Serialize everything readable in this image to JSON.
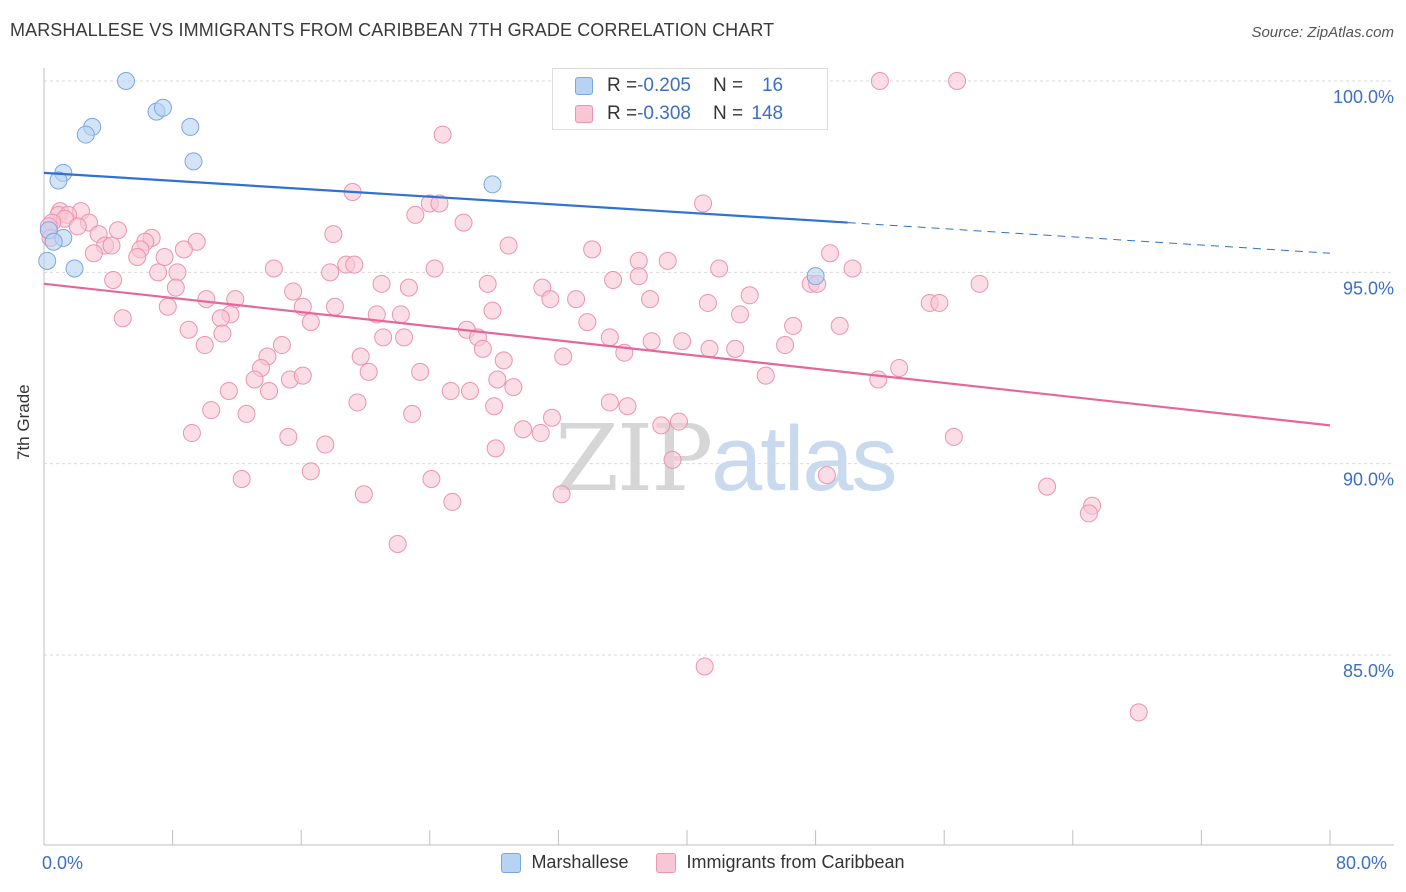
{
  "title": "MARSHALLESE VS IMMIGRANTS FROM CARIBBEAN 7TH GRADE CORRELATION CHART",
  "source": "Source: ZipAtlas.com",
  "watermark": {
    "zip": "ZIP",
    "atlas": "atlas"
  },
  "colors": {
    "blue_fill": "#b8d2f2",
    "blue_stroke": "#7aa7e0",
    "blue_line": "#2e72d2",
    "pink_fill": "#f9c6d6",
    "pink_stroke": "#ec93b0",
    "pink_line": "#e5679a",
    "tick_text": "#3b6fc6",
    "grid": "#d9d9d9"
  },
  "stats": [
    {
      "r_label": "R = ",
      "r_value": "-0.205",
      "n_label": "N = ",
      "n_value": "16"
    },
    {
      "r_label": "R = ",
      "r_value": "-0.308",
      "n_label": "N = ",
      "n_value": "148"
    }
  ],
  "legend": [
    "Marshallese",
    "Immigrants from Caribbean"
  ],
  "chart_data": {
    "type": "scatter",
    "title": "MARSHALLESE VS IMMIGRANTS FROM CARIBBEAN 7TH GRADE CORRELATION CHART",
    "xlabel": "",
    "ylabel": "7th Grade",
    "xlim": [
      0,
      80
    ],
    "ylim": [
      80.5,
      100.3
    ],
    "x_tick_labels": [
      "0.0%",
      "80.0%"
    ],
    "y_ticks": [
      85,
      90,
      95,
      100
    ],
    "y_tick_labels": [
      "85.0%",
      "90.0%",
      "95.0%",
      "100.0%"
    ],
    "grid": "horizontal dashed",
    "legend_position": "bottom",
    "series": [
      {
        "name": "Marshallese",
        "color": "#b8d2f2",
        "trend": {
          "x": [
            0,
            50
          ],
          "y": [
            97.6,
            96.3
          ],
          "dashed_extension_to": [
            80,
            95.5
          ]
        },
        "points": [
          [
            5.1,
            100.0
          ],
          [
            7.0,
            99.2
          ],
          [
            7.4,
            99.3
          ],
          [
            3.0,
            98.8
          ],
          [
            2.6,
            98.6
          ],
          [
            9.1,
            98.8
          ],
          [
            9.3,
            97.9
          ],
          [
            1.2,
            97.6
          ],
          [
            0.9,
            97.4
          ],
          [
            27.9,
            97.3
          ],
          [
            0.3,
            96.1
          ],
          [
            1.2,
            95.9
          ],
          [
            0.6,
            95.8
          ],
          [
            0.2,
            95.3
          ],
          [
            1.9,
            95.1
          ],
          [
            48.0,
            94.9
          ]
        ]
      },
      {
        "name": "Immigrants from Caribbean",
        "color": "#f9c6d6",
        "trend": {
          "x": [
            0,
            80
          ],
          "y": [
            94.7,
            91.0
          ]
        },
        "points": [
          [
            52.0,
            100.0
          ],
          [
            56.8,
            100.0
          ],
          [
            24.8,
            98.6
          ],
          [
            19.2,
            97.1
          ],
          [
            41.0,
            96.8
          ],
          [
            24.0,
            96.8
          ],
          [
            24.6,
            96.8
          ],
          [
            1.0,
            96.6
          ],
          [
            2.3,
            96.6
          ],
          [
            23.1,
            96.5
          ],
          [
            0.9,
            96.5
          ],
          [
            1.5,
            96.5
          ],
          [
            1.3,
            96.4
          ],
          [
            0.5,
            96.3
          ],
          [
            2.8,
            96.3
          ],
          [
            26.1,
            96.3
          ],
          [
            2.1,
            96.2
          ],
          [
            0.3,
            96.2
          ],
          [
            4.6,
            96.1
          ],
          [
            3.4,
            96.0
          ],
          [
            18.0,
            96.0
          ],
          [
            0.4,
            95.9
          ],
          [
            6.7,
            95.9
          ],
          [
            6.3,
            95.8
          ],
          [
            9.5,
            95.8
          ],
          [
            3.8,
            95.7
          ],
          [
            4.2,
            95.7
          ],
          [
            28.9,
            95.7
          ],
          [
            34.1,
            95.6
          ],
          [
            8.7,
            95.6
          ],
          [
            6.0,
            95.6
          ],
          [
            3.1,
            95.5
          ],
          [
            48.9,
            95.5
          ],
          [
            5.8,
            95.4
          ],
          [
            7.5,
            95.4
          ],
          [
            37.0,
            95.3
          ],
          [
            38.8,
            95.3
          ],
          [
            18.8,
            95.2
          ],
          [
            19.3,
            95.2
          ],
          [
            14.3,
            95.1
          ],
          [
            24.3,
            95.1
          ],
          [
            50.3,
            95.1
          ],
          [
            42.0,
            95.1
          ],
          [
            7.1,
            95.0
          ],
          [
            8.3,
            95.0
          ],
          [
            17.8,
            95.0
          ],
          [
            37.0,
            94.9
          ],
          [
            35.4,
            94.8
          ],
          [
            4.3,
            94.8
          ],
          [
            21.0,
            94.7
          ],
          [
            27.6,
            94.7
          ],
          [
            47.7,
            94.7
          ],
          [
            48.1,
            94.7
          ],
          [
            58.2,
            94.7
          ],
          [
            22.7,
            94.6
          ],
          [
            31.0,
            94.6
          ],
          [
            8.2,
            94.6
          ],
          [
            15.5,
            94.5
          ],
          [
            43.9,
            94.4
          ],
          [
            10.1,
            94.3
          ],
          [
            11.9,
            94.3
          ],
          [
            31.5,
            94.3
          ],
          [
            33.1,
            94.3
          ],
          [
            37.7,
            94.3
          ],
          [
            41.3,
            94.2
          ],
          [
            55.1,
            94.2
          ],
          [
            55.7,
            94.2
          ],
          [
            7.7,
            94.1
          ],
          [
            16.1,
            94.1
          ],
          [
            18.1,
            94.1
          ],
          [
            27.9,
            94.0
          ],
          [
            20.7,
            93.9
          ],
          [
            22.2,
            93.9
          ],
          [
            43.3,
            93.9
          ],
          [
            11.6,
            93.9
          ],
          [
            11.0,
            93.8
          ],
          [
            4.9,
            93.8
          ],
          [
            16.6,
            93.7
          ],
          [
            33.8,
            93.7
          ],
          [
            46.6,
            93.6
          ],
          [
            49.5,
            93.6
          ],
          [
            9.0,
            93.5
          ],
          [
            26.3,
            93.5
          ],
          [
            11.1,
            93.4
          ],
          [
            27.0,
            93.3
          ],
          [
            35.2,
            93.3
          ],
          [
            21.1,
            93.3
          ],
          [
            22.4,
            93.3
          ],
          [
            37.8,
            93.2
          ],
          [
            39.7,
            93.2
          ],
          [
            14.8,
            93.1
          ],
          [
            46.1,
            93.1
          ],
          [
            10.0,
            93.1
          ],
          [
            41.4,
            93.0
          ],
          [
            43.0,
            93.0
          ],
          [
            27.3,
            93.0
          ],
          [
            36.1,
            92.9
          ],
          [
            13.9,
            92.8
          ],
          [
            19.7,
            92.8
          ],
          [
            32.3,
            92.8
          ],
          [
            28.6,
            92.7
          ],
          [
            13.5,
            92.5
          ],
          [
            20.2,
            92.4
          ],
          [
            23.4,
            92.4
          ],
          [
            44.9,
            92.3
          ],
          [
            53.2,
            92.5
          ],
          [
            13.1,
            92.2
          ],
          [
            15.3,
            92.2
          ],
          [
            16.1,
            92.3
          ],
          [
            51.9,
            92.2
          ],
          [
            28.2,
            92.2
          ],
          [
            11.5,
            91.9
          ],
          [
            14.0,
            91.9
          ],
          [
            25.3,
            91.9
          ],
          [
            26.5,
            91.9
          ],
          [
            29.2,
            92.0
          ],
          [
            19.5,
            91.6
          ],
          [
            35.2,
            91.6
          ],
          [
            36.3,
            91.5
          ],
          [
            28.0,
            91.5
          ],
          [
            10.4,
            91.4
          ],
          [
            12.6,
            91.3
          ],
          [
            22.9,
            91.3
          ],
          [
            31.6,
            91.2
          ],
          [
            39.5,
            91.1
          ],
          [
            38.4,
            91.0
          ],
          [
            29.8,
            90.9
          ],
          [
            30.9,
            90.8
          ],
          [
            9.2,
            90.8
          ],
          [
            15.2,
            90.7
          ],
          [
            17.5,
            90.5
          ],
          [
            56.6,
            90.7
          ],
          [
            28.1,
            90.4
          ],
          [
            39.1,
            90.1
          ],
          [
            16.6,
            89.8
          ],
          [
            48.7,
            89.7
          ],
          [
            12.3,
            89.6
          ],
          [
            24.1,
            89.6
          ],
          [
            62.4,
            89.4
          ],
          [
            19.9,
            89.2
          ],
          [
            25.4,
            89.0
          ],
          [
            32.2,
            89.2
          ],
          [
            65.2,
            88.9
          ],
          [
            65.0,
            88.7
          ],
          [
            22.0,
            87.9
          ],
          [
            41.1,
            84.7
          ],
          [
            68.1,
            83.5
          ]
        ]
      }
    ]
  }
}
